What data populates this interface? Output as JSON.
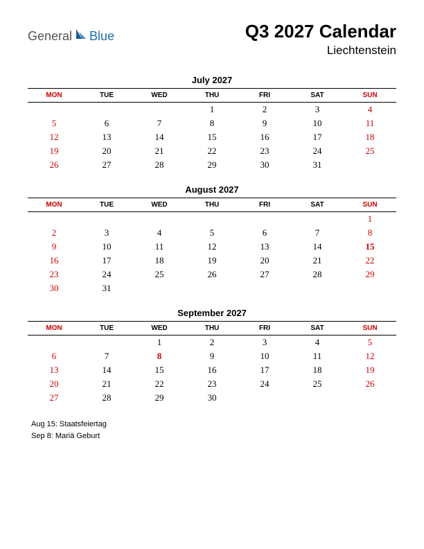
{
  "logo": {
    "general": "General",
    "blue": "Blue",
    "icon_color_dark": "#1a5a8a",
    "icon_color_light": "#3a8ac8"
  },
  "header": {
    "title": "Q3 2027 Calendar",
    "subtitle": "Liechtenstein"
  },
  "day_headers": [
    "MON",
    "TUE",
    "WED",
    "THU",
    "FRI",
    "SAT",
    "SUN"
  ],
  "day_header_red": [
    true,
    false,
    false,
    false,
    false,
    false,
    true
  ],
  "months": [
    {
      "title": "July 2027",
      "weeks": [
        [
          null,
          null,
          null,
          {
            "d": "1"
          },
          {
            "d": "2"
          },
          {
            "d": "3"
          },
          {
            "d": "4",
            "r": true
          }
        ],
        [
          {
            "d": "5",
            "r": true
          },
          {
            "d": "6"
          },
          {
            "d": "7"
          },
          {
            "d": "8"
          },
          {
            "d": "9"
          },
          {
            "d": "10"
          },
          {
            "d": "11",
            "r": true
          }
        ],
        [
          {
            "d": "12",
            "r": true
          },
          {
            "d": "13"
          },
          {
            "d": "14"
          },
          {
            "d": "15"
          },
          {
            "d": "16"
          },
          {
            "d": "17"
          },
          {
            "d": "18",
            "r": true
          }
        ],
        [
          {
            "d": "19",
            "r": true
          },
          {
            "d": "20"
          },
          {
            "d": "21"
          },
          {
            "d": "22"
          },
          {
            "d": "23"
          },
          {
            "d": "24"
          },
          {
            "d": "25",
            "r": true
          }
        ],
        [
          {
            "d": "26",
            "r": true
          },
          {
            "d": "27"
          },
          {
            "d": "28"
          },
          {
            "d": "29"
          },
          {
            "d": "30"
          },
          {
            "d": "31"
          },
          null
        ]
      ]
    },
    {
      "title": "August 2027",
      "weeks": [
        [
          null,
          null,
          null,
          null,
          null,
          null,
          {
            "d": "1",
            "r": true
          }
        ],
        [
          {
            "d": "2",
            "r": true
          },
          {
            "d": "3"
          },
          {
            "d": "4"
          },
          {
            "d": "5"
          },
          {
            "d": "6"
          },
          {
            "d": "7"
          },
          {
            "d": "8",
            "r": true
          }
        ],
        [
          {
            "d": "9",
            "r": true
          },
          {
            "d": "10"
          },
          {
            "d": "11"
          },
          {
            "d": "12"
          },
          {
            "d": "13"
          },
          {
            "d": "14"
          },
          {
            "d": "15",
            "r": true,
            "h": true
          }
        ],
        [
          {
            "d": "16",
            "r": true
          },
          {
            "d": "17"
          },
          {
            "d": "18"
          },
          {
            "d": "19"
          },
          {
            "d": "20"
          },
          {
            "d": "21"
          },
          {
            "d": "22",
            "r": true
          }
        ],
        [
          {
            "d": "23",
            "r": true
          },
          {
            "d": "24"
          },
          {
            "d": "25"
          },
          {
            "d": "26"
          },
          {
            "d": "27"
          },
          {
            "d": "28"
          },
          {
            "d": "29",
            "r": true
          }
        ],
        [
          {
            "d": "30",
            "r": true
          },
          {
            "d": "31"
          },
          null,
          null,
          null,
          null,
          null
        ]
      ]
    },
    {
      "title": "September 2027",
      "weeks": [
        [
          null,
          null,
          {
            "d": "1"
          },
          {
            "d": "2"
          },
          {
            "d": "3"
          },
          {
            "d": "4"
          },
          {
            "d": "5",
            "r": true
          }
        ],
        [
          {
            "d": "6",
            "r": true
          },
          {
            "d": "7"
          },
          {
            "d": "8",
            "r": true,
            "h": true
          },
          {
            "d": "9"
          },
          {
            "d": "10"
          },
          {
            "d": "11"
          },
          {
            "d": "12",
            "r": true
          }
        ],
        [
          {
            "d": "13",
            "r": true
          },
          {
            "d": "14"
          },
          {
            "d": "15"
          },
          {
            "d": "16"
          },
          {
            "d": "17"
          },
          {
            "d": "18"
          },
          {
            "d": "19",
            "r": true
          }
        ],
        [
          {
            "d": "20",
            "r": true
          },
          {
            "d": "21"
          },
          {
            "d": "22"
          },
          {
            "d": "23"
          },
          {
            "d": "24"
          },
          {
            "d": "25"
          },
          {
            "d": "26",
            "r": true
          }
        ],
        [
          {
            "d": "27",
            "r": true
          },
          {
            "d": "28"
          },
          {
            "d": "29"
          },
          {
            "d": "30"
          },
          null,
          null,
          null
        ]
      ]
    }
  ],
  "holidays": [
    "Aug 15: Staatsfeiertag",
    "Sep 8: Mariä Geburt"
  ]
}
